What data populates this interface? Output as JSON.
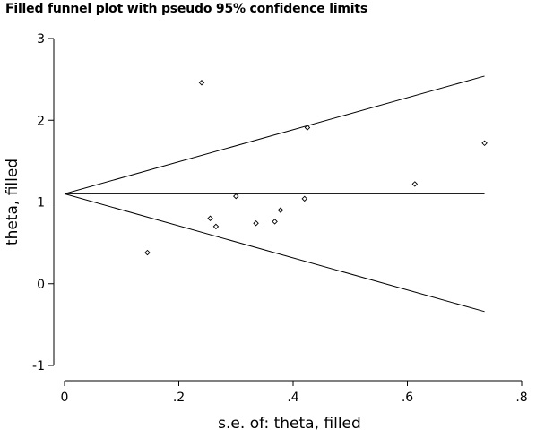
{
  "chart_data": {
    "type": "scatter",
    "title": "Filled funnel plot with pseudo 95% confidence limits",
    "xlabel": "s.e. of: theta, filled",
    "ylabel": "theta, filled",
    "xlim": [
      0,
      0.8
    ],
    "ylim": [
      -1,
      3
    ],
    "x_ticks": [
      0,
      0.2,
      0.4,
      0.6,
      0.8
    ],
    "x_tick_labels": [
      "0",
      ".2",
      ".4",
      ".6",
      ".8"
    ],
    "y_ticks": [
      -1,
      0,
      1,
      2,
      3
    ],
    "y_tick_labels": [
      "-1",
      "0",
      "1",
      "2",
      "3"
    ],
    "grid": false,
    "pooled_estimate": 1.1,
    "funnel_se_max": 0.735,
    "points": [
      {
        "x": 0.145,
        "y": 0.38
      },
      {
        "x": 0.24,
        "y": 2.46
      },
      {
        "x": 0.255,
        "y": 0.8
      },
      {
        "x": 0.265,
        "y": 0.7
      },
      {
        "x": 0.3,
        "y": 1.07
      },
      {
        "x": 0.335,
        "y": 0.74
      },
      {
        "x": 0.368,
        "y": 0.76
      },
      {
        "x": 0.378,
        "y": 0.9
      },
      {
        "x": 0.42,
        "y": 1.04
      },
      {
        "x": 0.425,
        "y": 1.91
      },
      {
        "x": 0.613,
        "y": 1.22
      },
      {
        "x": 0.735,
        "y": 1.72
      }
    ]
  }
}
